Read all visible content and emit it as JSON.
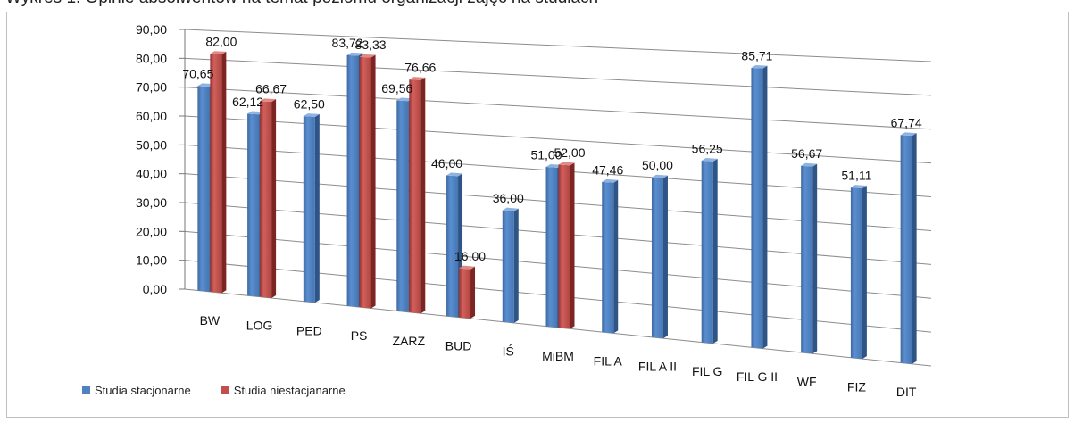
{
  "header": {
    "cut_title": "Wykres 1. Opinie absolwentów na temat poziomu organizacji zajęć na studiach"
  },
  "chart_data": {
    "type": "bar",
    "categories": [
      "BW",
      "LOG",
      "PED",
      "PS",
      "ZARZ",
      "BUD",
      "IŚ",
      "MiBM",
      "FIL A",
      "FIL A II",
      "FIL G",
      "FIL G II",
      "WF",
      "FIZ",
      "DIT"
    ],
    "series": [
      {
        "name": "Studia stacjonarne",
        "color": "#4f81bd",
        "values": [
          70.65,
          62.12,
          62.5,
          83.72,
          69.56,
          46.0,
          36.0,
          51.0,
          47.46,
          50.0,
          56.25,
          85.71,
          56.67,
          51.11,
          67.74
        ],
        "labels": [
          "70,65",
          "62,12",
          "62,50",
          "83,72",
          "69,56",
          "46,00",
          "36,00",
          "51,00",
          "47,46",
          "50,00",
          "56,25",
          "85,71",
          "56,67",
          "51,11",
          "67,74"
        ]
      },
      {
        "name": "Studia niestacjanarne",
        "color": "#c0504d",
        "values": [
          82.0,
          66.67,
          null,
          83.33,
          76.66,
          16.0,
          null,
          52.0,
          null,
          null,
          null,
          null,
          null,
          null,
          null
        ],
        "labels": [
          "82,00",
          "66,67",
          "",
          "83,33",
          "76,66",
          "16,00",
          "",
          "52,00",
          "",
          "",
          "",
          "",
          "",
          "",
          ""
        ]
      }
    ],
    "y_ticks": [
      "0,00",
      "10,00",
      "20,00",
      "30,00",
      "40,00",
      "50,00",
      "60,00",
      "70,00",
      "80,00",
      "90,00"
    ],
    "ylim": [
      0,
      90
    ],
    "grid": true,
    "legend_position": "bottom-left"
  }
}
